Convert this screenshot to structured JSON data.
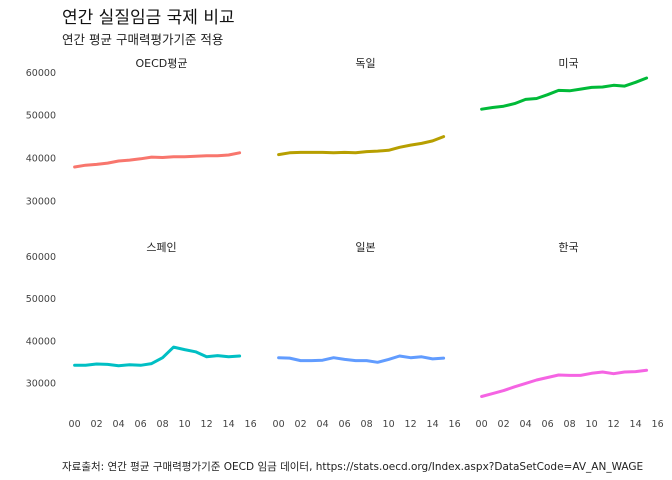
{
  "title": "연간 실질임금 국제 비교",
  "subtitle": "연간 평균 구매력평가기준 적용",
  "caption": "자료출처: 연간 평균 구매력평가기준 OECD 임금 데이터, https://stats.oecd.org/Index.aspx?DataSetCode=AV_AN_WAGE",
  "chart_data": {
    "type": "line",
    "layout": "facet 2x3, shared axes",
    "x": [
      2000,
      2001,
      2002,
      2003,
      2004,
      2005,
      2006,
      2007,
      2008,
      2009,
      2010,
      2011,
      2012,
      2013,
      2014,
      2015
    ],
    "x_ticks": [
      "00",
      "02",
      "04",
      "06",
      "08",
      "10",
      "12",
      "14",
      "16"
    ],
    "x_tick_values": [
      2000,
      2002,
      2004,
      2006,
      2008,
      2010,
      2012,
      2014,
      2016
    ],
    "xlim": [
      1999.4,
      2016.4
    ],
    "y_ticks": [
      30000,
      40000,
      50000,
      60000
    ],
    "ylim": [
      25500,
      61500
    ],
    "grid": false,
    "legend": "none",
    "series": [
      {
        "name": "OECD평균",
        "color": "#F8766D",
        "values": [
          37900,
          38300,
          38500,
          38800,
          39300,
          39500,
          39800,
          40200,
          40100,
          40300,
          40300,
          40400,
          40500,
          40500,
          40700,
          41200
        ]
      },
      {
        "name": "독일",
        "color": "#B79F00",
        "values": [
          40800,
          41200,
          41300,
          41300,
          41300,
          41200,
          41300,
          41200,
          41500,
          41600,
          41800,
          42500,
          43000,
          43400,
          44000,
          45000
        ]
      },
      {
        "name": "미국",
        "color": "#00BA38",
        "values": [
          51400,
          51800,
          52100,
          52700,
          53700,
          53900,
          54800,
          55800,
          55700,
          56100,
          56500,
          56600,
          57000,
          56800,
          57700,
          58700
        ]
      },
      {
        "name": "스페인",
        "color": "#00BFC4",
        "values": [
          34200,
          34200,
          34500,
          34400,
          34100,
          34300,
          34200,
          34600,
          36000,
          38500,
          37900,
          37400,
          36200,
          36500,
          36200,
          36400
        ]
      },
      {
        "name": "일본",
        "color": "#619CFF",
        "values": [
          36000,
          35900,
          35300,
          35300,
          35400,
          36000,
          35600,
          35300,
          35300,
          34900,
          35600,
          36400,
          36000,
          36200,
          35700,
          35900
        ]
      },
      {
        "name": "한국",
        "color": "#F564E3",
        "values": [
          26800,
          27500,
          28200,
          29100,
          29900,
          30700,
          31300,
          31900,
          31800,
          31800,
          32300,
          32600,
          32200,
          32600,
          32700,
          33000
        ]
      }
    ]
  }
}
